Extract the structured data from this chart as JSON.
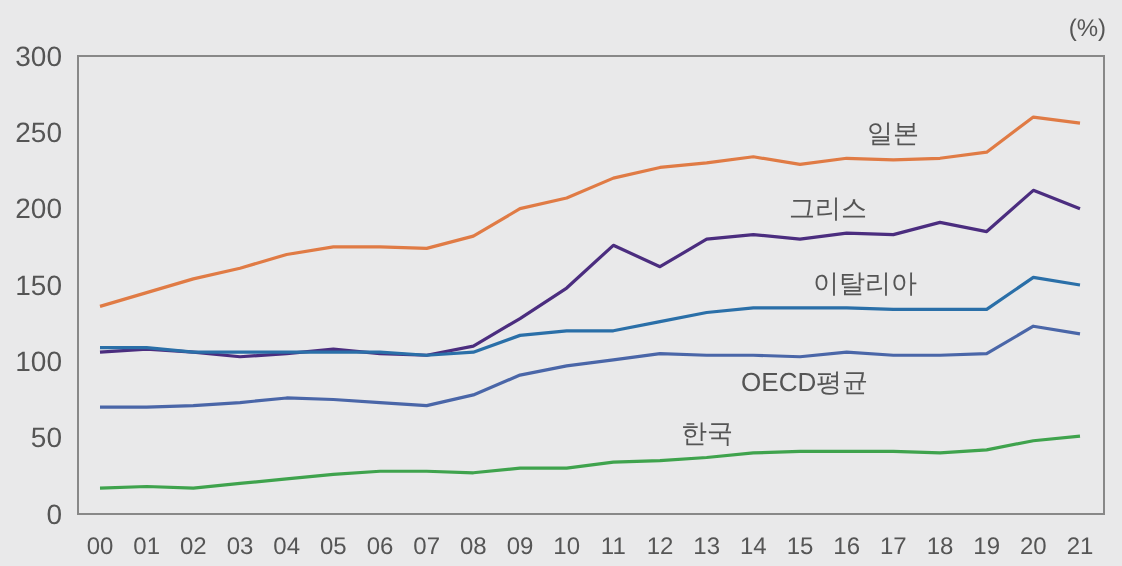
{
  "chart_data": {
    "type": "line",
    "categories": [
      "00",
      "01",
      "02",
      "03",
      "04",
      "05",
      "06",
      "07",
      "08",
      "09",
      "10",
      "11",
      "12",
      "13",
      "14",
      "15",
      "16",
      "17",
      "18",
      "19",
      "20",
      "21"
    ],
    "ylim": [
      0,
      300
    ],
    "yticks": [
      0,
      50,
      100,
      150,
      200,
      250,
      300
    ],
    "grid": false,
    "legend": false,
    "marker": "none",
    "line_style": "solid",
    "annotations": [
      "(%)"
    ],
    "series": [
      {
        "name": "일본",
        "color": "#e07b45",
        "values": [
          136,
          145,
          154,
          161,
          170,
          175,
          175,
          174,
          182,
          200,
          207,
          220,
          227,
          230,
          234,
          229,
          233,
          232,
          233,
          237,
          260,
          256
        ]
      },
      {
        "name": "그리스",
        "color": "#4b2d7f",
        "values": [
          106,
          108,
          106,
          103,
          105,
          108,
          105,
          104,
          110,
          128,
          148,
          176,
          162,
          180,
          183,
          180,
          184,
          183,
          191,
          185,
          212,
          200
        ]
      },
      {
        "name": "이탈리아",
        "color": "#2a6fa8",
        "values": [
          109,
          109,
          106,
          106,
          106,
          106,
          106,
          104,
          106,
          117,
          120,
          120,
          126,
          132,
          135,
          135,
          135,
          134,
          134,
          134,
          155,
          150
        ]
      },
      {
        "name": "OECD평균",
        "color": "#4a66a8",
        "values": [
          70,
          70,
          71,
          73,
          76,
          75,
          73,
          71,
          78,
          91,
          97,
          101,
          105,
          104,
          104,
          103,
          106,
          104,
          104,
          105,
          123,
          118
        ]
      },
      {
        "name": "한국",
        "color": "#3fa34d",
        "values": [
          17,
          18,
          17,
          20,
          23,
          26,
          28,
          28,
          27,
          30,
          30,
          34,
          35,
          37,
          40,
          41,
          41,
          41,
          40,
          42,
          48,
          51
        ]
      }
    ]
  }
}
